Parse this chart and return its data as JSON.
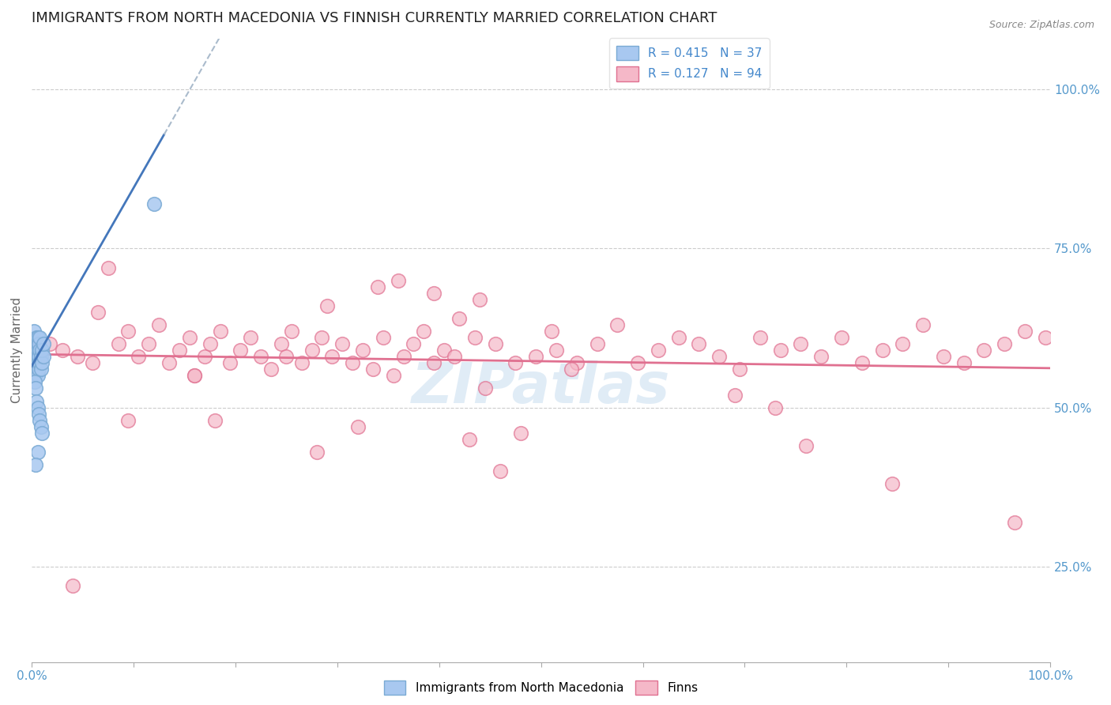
{
  "title": "IMMIGRANTS FROM NORTH MACEDONIA VS FINNISH CURRENTLY MARRIED CORRELATION CHART",
  "source_text": "Source: ZipAtlas.com",
  "ylabel": "Currently Married",
  "watermark": "ZIPatlas",
  "xlim": [
    0.0,
    1.0
  ],
  "ylim": [
    0.1,
    1.08
  ],
  "right_ytick_labels": [
    "25.0%",
    "50.0%",
    "75.0%",
    "100.0%"
  ],
  "right_ytick_values": [
    0.25,
    0.5,
    0.75,
    1.0
  ],
  "grid_color": "#cccccc",
  "background_color": "#ffffff",
  "title_fontsize": 13,
  "axis_label_color": "#5599cc",
  "watermark_color": "#c8ddf0",
  "watermark_fontsize": 52,
  "blue_scatter_color": "#a8c8f0",
  "blue_scatter_edge": "#7aaad4",
  "pink_scatter_color": "#f5b8c8",
  "pink_scatter_edge": "#e07090",
  "blue_line_color": "#4477bb",
  "blue_line_solid_end_x": 0.13,
  "pink_line_color": "#e07090",
  "legend_r1": "R = 0.415",
  "legend_n1": "N = 37",
  "legend_r2": "R = 0.127",
  "legend_n2": "N = 94",
  "blue_scatter_x": [
    0.002,
    0.003,
    0.003,
    0.004,
    0.004,
    0.004,
    0.005,
    0.005,
    0.005,
    0.005,
    0.006,
    0.006,
    0.006,
    0.006,
    0.007,
    0.007,
    0.007,
    0.008,
    0.008,
    0.008,
    0.009,
    0.009,
    0.01,
    0.01,
    0.012,
    0.012,
    0.003,
    0.004,
    0.005,
    0.006,
    0.007,
    0.008,
    0.009,
    0.01,
    0.006,
    0.12,
    0.004
  ],
  "blue_scatter_y": [
    0.62,
    0.6,
    0.58,
    0.57,
    0.55,
    0.59,
    0.58,
    0.6,
    0.56,
    0.61,
    0.57,
    0.59,
    0.61,
    0.55,
    0.58,
    0.6,
    0.56,
    0.59,
    0.57,
    0.61,
    0.56,
    0.58,
    0.57,
    0.59,
    0.58,
    0.6,
    0.54,
    0.53,
    0.51,
    0.5,
    0.49,
    0.48,
    0.47,
    0.46,
    0.43,
    0.82,
    0.41
  ],
  "pink_scatter_x": [
    0.018,
    0.03,
    0.045,
    0.06,
    0.065,
    0.075,
    0.085,
    0.095,
    0.105,
    0.115,
    0.125,
    0.135,
    0.145,
    0.155,
    0.16,
    0.17,
    0.175,
    0.185,
    0.195,
    0.205,
    0.215,
    0.225,
    0.235,
    0.245,
    0.255,
    0.265,
    0.275,
    0.285,
    0.295,
    0.305,
    0.315,
    0.325,
    0.335,
    0.345,
    0.355,
    0.365,
    0.375,
    0.385,
    0.395,
    0.405,
    0.415,
    0.435,
    0.455,
    0.475,
    0.495,
    0.515,
    0.535,
    0.555,
    0.575,
    0.595,
    0.615,
    0.635,
    0.655,
    0.675,
    0.695,
    0.715,
    0.735,
    0.755,
    0.775,
    0.795,
    0.815,
    0.835,
    0.855,
    0.875,
    0.895,
    0.915,
    0.935,
    0.955,
    0.975,
    0.995,
    0.395,
    0.36,
    0.42,
    0.29,
    0.34,
    0.44,
    0.51,
    0.25,
    0.16,
    0.53,
    0.445,
    0.69,
    0.73,
    0.43,
    0.18,
    0.32,
    0.28,
    0.46,
    0.48,
    0.76,
    0.845,
    0.965,
    0.095,
    0.04
  ],
  "pink_scatter_y": [
    0.6,
    0.59,
    0.58,
    0.57,
    0.65,
    0.72,
    0.6,
    0.62,
    0.58,
    0.6,
    0.63,
    0.57,
    0.59,
    0.61,
    0.55,
    0.58,
    0.6,
    0.62,
    0.57,
    0.59,
    0.61,
    0.58,
    0.56,
    0.6,
    0.62,
    0.57,
    0.59,
    0.61,
    0.58,
    0.6,
    0.57,
    0.59,
    0.56,
    0.61,
    0.55,
    0.58,
    0.6,
    0.62,
    0.57,
    0.59,
    0.58,
    0.61,
    0.6,
    0.57,
    0.58,
    0.59,
    0.57,
    0.6,
    0.63,
    0.57,
    0.59,
    0.61,
    0.6,
    0.58,
    0.56,
    0.61,
    0.59,
    0.6,
    0.58,
    0.61,
    0.57,
    0.59,
    0.6,
    0.63,
    0.58,
    0.57,
    0.59,
    0.6,
    0.62,
    0.61,
    0.68,
    0.7,
    0.64,
    0.66,
    0.69,
    0.67,
    0.62,
    0.58,
    0.55,
    0.56,
    0.53,
    0.52,
    0.5,
    0.45,
    0.48,
    0.47,
    0.43,
    0.4,
    0.46,
    0.44,
    0.38,
    0.32,
    0.48,
    0.22
  ]
}
